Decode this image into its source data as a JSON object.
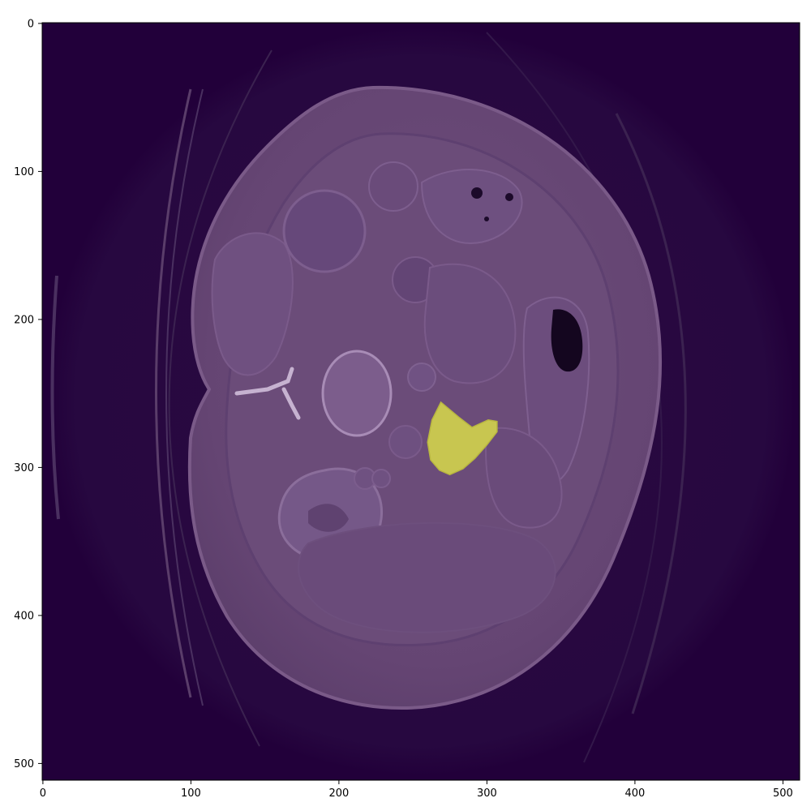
{
  "figure": {
    "x_ticks": [
      "0",
      "100",
      "200",
      "300",
      "400",
      "500"
    ],
    "y_ticks": [
      "0",
      "100",
      "200",
      "300",
      "400",
      "500"
    ],
    "x_range": [
      0,
      511
    ],
    "y_range": [
      0,
      511
    ],
    "y_inverted": true
  },
  "image": {
    "modality": "axial CT slice (abdomen)",
    "colormap": "viridis",
    "background_color": "#22003a",
    "body_color": "#6a4a78",
    "overlay_color": "#c8c650",
    "has_segmentation_overlay": true
  },
  "chart_data": {
    "type": "heatmap",
    "xlim": [
      0,
      511
    ],
    "ylim": [
      511,
      0
    ],
    "overlay_mask": {
      "label": "",
      "outline_points": [
        [
          269,
          256
        ],
        [
          281,
          266
        ],
        [
          290,
          273
        ],
        [
          301,
          268
        ],
        [
          307,
          269
        ],
        [
          307,
          276
        ],
        [
          300,
          285
        ],
        [
          292,
          294
        ],
        [
          284,
          301
        ],
        [
          275,
          305
        ],
        [
          268,
          302
        ],
        [
          262,
          295
        ],
        [
          260,
          283
        ],
        [
          263,
          268
        ]
      ]
    }
  }
}
